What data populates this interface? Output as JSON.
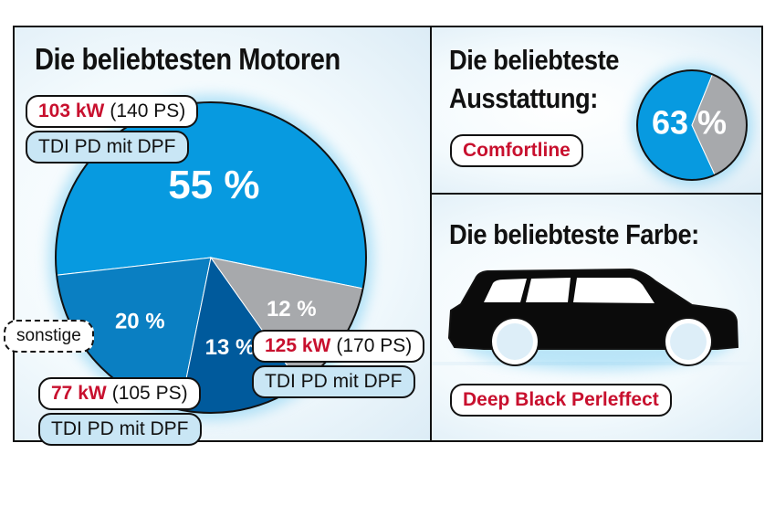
{
  "left": {
    "title": "Die beliebtesten Motoren",
    "labels": {
      "e103": {
        "kw": "103 kW",
        "ps": "(140 PS)",
        "type": "TDI PD mit DPF"
      },
      "e125": {
        "kw": "125 kW",
        "ps": "(170 PS)",
        "type": "TDI PD mit DPF"
      },
      "e77": {
        "kw": "77 kW",
        "ps": "(105 PS)",
        "type": "TDI PD mit DPF"
      },
      "other": "sonstige"
    }
  },
  "top_right": {
    "title_line1": "Die beliebteste",
    "title_line2": "Ausstattung:",
    "badge": "Comfortline"
  },
  "bottom_right": {
    "title": "Die beliebteste Farbe:",
    "badge": "Deep Black Perleffect",
    "icon": "station-wagon-car-icon"
  },
  "colors": {
    "blue_light": "#079ae0",
    "blue_mid": "#0a7fc2",
    "blue_dark": "#005a9c",
    "grey": "#a7a9ac",
    "accent_red": "#c8102e"
  },
  "chart_data": [
    {
      "type": "pie",
      "title": "Die beliebtesten Motoren",
      "slices": [
        {
          "label": "103 kW (140 PS) TDI PD mit DPF",
          "value": 55,
          "text": "55 %"
        },
        {
          "label": "125 kW (170 PS) TDI PD mit DPF",
          "value": 20,
          "text": "20 %"
        },
        {
          "label": "77 kW (105 PS) TDI PD mit DPF",
          "value": 13,
          "text": "13 %"
        },
        {
          "label": "sonstige",
          "value": 12,
          "text": "12 %"
        }
      ]
    },
    {
      "type": "pie",
      "title": "Die beliebteste Ausstattung:",
      "slices": [
        {
          "label": "Comfortline",
          "value": 63,
          "text": "63 %"
        },
        {
          "label": "",
          "value": 37,
          "text": ""
        }
      ]
    }
  ]
}
